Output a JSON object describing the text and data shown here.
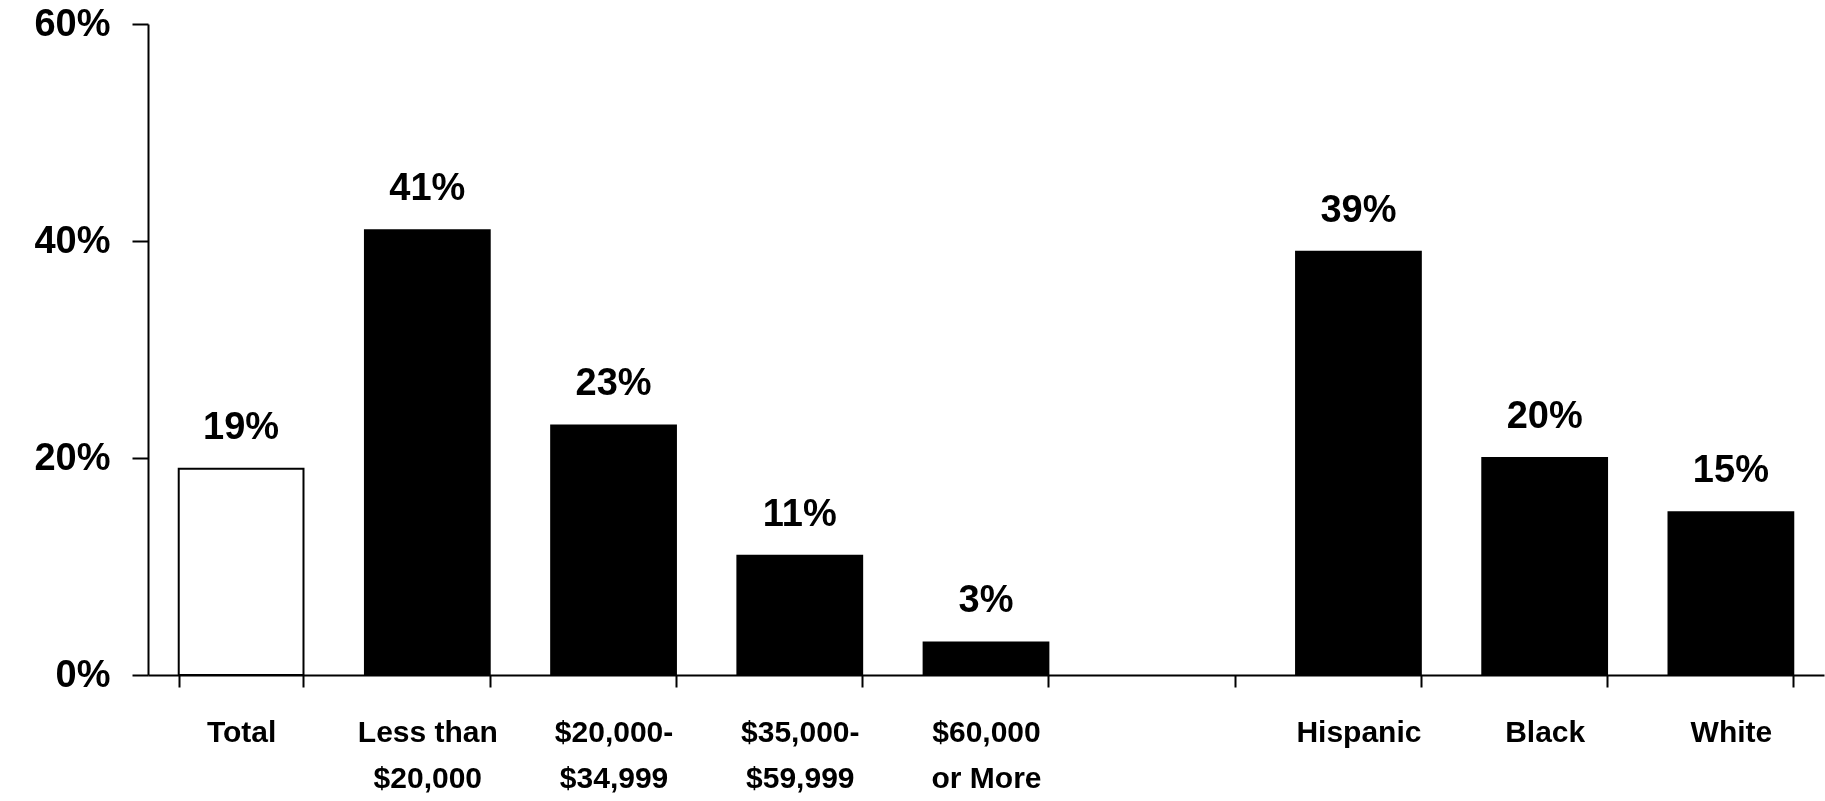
{
  "chart_data": {
    "type": "bar",
    "categories": [
      "Total",
      "Less than $20,000",
      "$20,000-$34,999",
      "$35,000-$59,999",
      "$60,000 or More",
      null,
      "Hispanic",
      "Black",
      "White"
    ],
    "values": [
      19,
      41,
      23,
      11,
      3,
      null,
      39,
      20,
      15
    ],
    "colors": [
      "#ffffff",
      "#000000",
      "#000000",
      "#000000",
      "#000000",
      "#000000",
      "#000000",
      "#000000",
      "#000000"
    ],
    "value_labels": [
      "19%",
      "41%",
      "23%",
      "11%",
      "3%",
      null,
      "39%",
      "20%",
      "15%"
    ],
    "ylim": [
      0,
      60
    ],
    "yticks": [
      {
        "value": 0,
        "label": "0%"
      },
      {
        "value": 20,
        "label": "20%"
      },
      {
        "value": 40,
        "label": "40%"
      },
      {
        "value": 60,
        "label": "60%"
      }
    ],
    "grid": false
  }
}
